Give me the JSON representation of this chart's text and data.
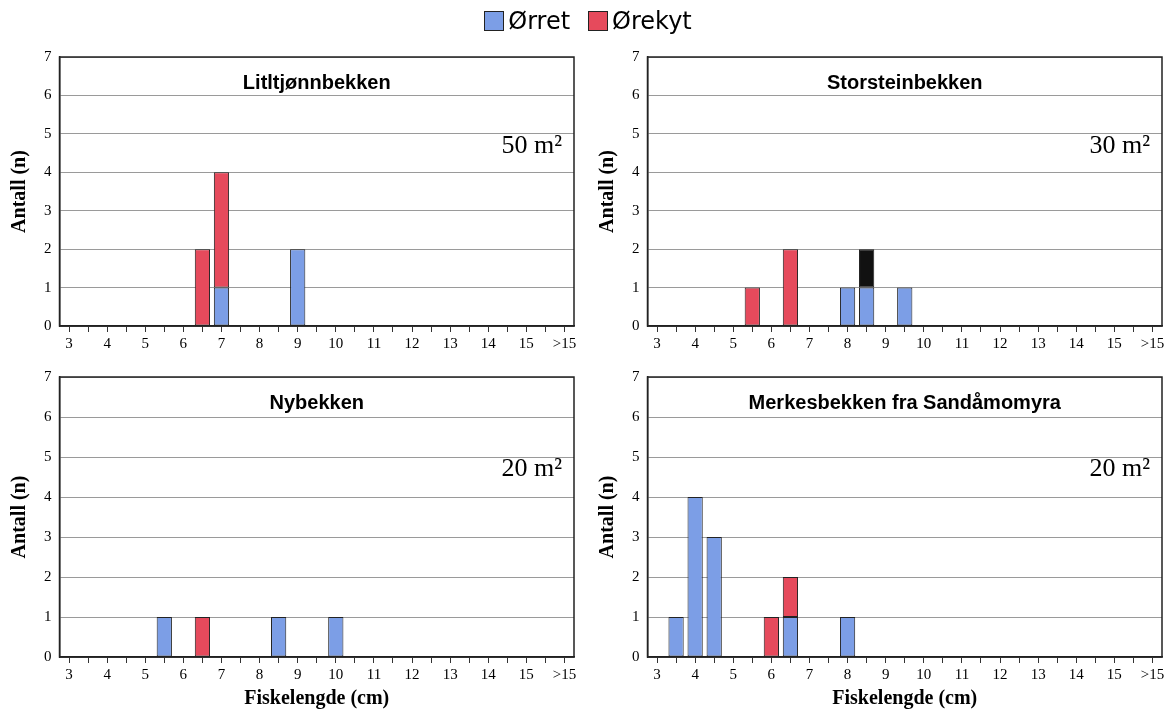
{
  "chart_data": [
    {
      "type": "bar",
      "stacked": true,
      "title": "Litltjønnbekken",
      "ylabel": "Antall (n)",
      "annotations": [
        "50 m²"
      ],
      "legend": "top",
      "grid": "y",
      "categories": [
        "3",
        null,
        "4",
        null,
        "5",
        null,
        "6",
        null,
        "7",
        null,
        "8",
        null,
        "9",
        null,
        "10",
        null,
        "11",
        null,
        "12",
        null,
        "13",
        null,
        "14",
        null,
        "15",
        null,
        ">15"
      ],
      "ylim": [
        0,
        7
      ],
      "yticks": [
        0,
        1,
        2,
        3,
        4,
        5,
        6,
        7
      ],
      "series": [
        {
          "name": "Ørret",
          "color": "#7c9ee6",
          "values": [
            null,
            null,
            null,
            null,
            null,
            null,
            null,
            null,
            1,
            null,
            null,
            null,
            2,
            null,
            null,
            null,
            null,
            null,
            null,
            null,
            null,
            null,
            null,
            null,
            null,
            null,
            null
          ]
        },
        {
          "name": "Ørekyt",
          "color": "#e64a5c",
          "values": [
            null,
            null,
            null,
            null,
            null,
            null,
            null,
            2,
            3,
            null,
            null,
            null,
            null,
            null,
            null,
            null,
            null,
            null,
            null,
            null,
            null,
            null,
            null,
            null,
            null,
            null,
            null
          ]
        }
      ]
    },
    {
      "type": "bar",
      "stacked": true,
      "title": "Storsteinbekken",
      "ylabel": "Antall (n)",
      "annotations": [
        "30 m²"
      ],
      "grid": "y",
      "categories": [
        "3",
        null,
        "4",
        null,
        "5",
        null,
        "6",
        null,
        "7",
        null,
        "8",
        null,
        "9",
        null,
        "10",
        null,
        "11",
        null,
        "12",
        null,
        "13",
        null,
        "14",
        null,
        "15",
        null,
        ">15"
      ],
      "ylim": [
        0,
        7
      ],
      "yticks": [
        0,
        1,
        2,
        3,
        4,
        5,
        6,
        7
      ],
      "series": [
        {
          "name": "Ørret",
          "color": "#7c9ee6",
          "values": [
            null,
            null,
            null,
            null,
            null,
            null,
            null,
            null,
            null,
            null,
            1,
            1,
            null,
            1,
            null,
            null,
            null,
            null,
            null,
            null,
            null,
            null,
            null,
            null,
            null,
            null,
            null
          ]
        },
        {
          "name": "Ørekyt",
          "color": "#e64a5c",
          "values": [
            null,
            null,
            null,
            null,
            null,
            1,
            null,
            2,
            null,
            null,
            null,
            null,
            null,
            null,
            null,
            null,
            null,
            null,
            null,
            null,
            null,
            null,
            null,
            null,
            null,
            null,
            null
          ]
        },
        {
          "color": "#111111",
          "values": [
            null,
            null,
            null,
            null,
            null,
            null,
            null,
            null,
            null,
            null,
            null,
            1,
            null,
            null,
            null,
            null,
            null,
            null,
            null,
            null,
            null,
            null,
            null,
            null,
            null,
            null,
            null
          ]
        }
      ]
    },
    {
      "type": "bar",
      "stacked": true,
      "title": "Nybekken",
      "ylabel": "Antall (n)",
      "xlabel": "Fiskelengde (cm)",
      "annotations": [
        "20 m²"
      ],
      "grid": "y",
      "categories": [
        "3",
        null,
        "4",
        null,
        "5",
        null,
        "6",
        null,
        "7",
        null,
        "8",
        null,
        "9",
        null,
        "10",
        null,
        "11",
        null,
        "12",
        null,
        "13",
        null,
        "14",
        null,
        "15",
        null,
        ">15"
      ],
      "ylim": [
        0,
        7
      ],
      "yticks": [
        0,
        1,
        2,
        3,
        4,
        5,
        6,
        7
      ],
      "series": [
        {
          "name": "Ørret",
          "color": "#7c9ee6",
          "values": [
            null,
            null,
            null,
            null,
            null,
            1,
            null,
            null,
            null,
            null,
            null,
            1,
            null,
            null,
            1,
            null,
            null,
            null,
            null,
            null,
            null,
            null,
            null,
            null,
            null,
            null,
            null
          ]
        },
        {
          "name": "Ørekyt",
          "color": "#e64a5c",
          "values": [
            null,
            null,
            null,
            null,
            null,
            null,
            null,
            1,
            null,
            null,
            null,
            null,
            null,
            null,
            null,
            null,
            null,
            null,
            null,
            null,
            null,
            null,
            null,
            null,
            null,
            null,
            null
          ]
        }
      ]
    },
    {
      "type": "bar",
      "stacked": true,
      "title": "Merkesbekken fra Sandåmomyra",
      "ylabel": "Antall (n)",
      "xlabel": "Fiskelengde (cm)",
      "annotations": [
        "20 m²"
      ],
      "grid": "y",
      "categories": [
        "3",
        null,
        "4",
        null,
        "5",
        null,
        "6",
        null,
        "7",
        null,
        "8",
        null,
        "9",
        null,
        "10",
        null,
        "11",
        null,
        "12",
        null,
        "13",
        null,
        "14",
        null,
        "15",
        null,
        ">15"
      ],
      "ylim": [
        0,
        7
      ],
      "yticks": [
        0,
        1,
        2,
        3,
        4,
        5,
        6,
        7
      ],
      "series": [
        {
          "name": "Ørret",
          "color": "#7c9ee6",
          "values": [
            null,
            1,
            4,
            3,
            null,
            null,
            null,
            1,
            null,
            null,
            1,
            null,
            null,
            null,
            null,
            null,
            null,
            null,
            null,
            null,
            null,
            null,
            null,
            null,
            null,
            null,
            null
          ]
        },
        {
          "name": "Ørekyt",
          "color": "#e64a5c",
          "values": [
            null,
            null,
            null,
            null,
            null,
            null,
            1,
            1,
            null,
            null,
            null,
            null,
            null,
            null,
            null,
            null,
            null,
            null,
            null,
            null,
            null,
            null,
            null,
            null,
            null,
            null,
            null
          ]
        }
      ]
    }
  ]
}
